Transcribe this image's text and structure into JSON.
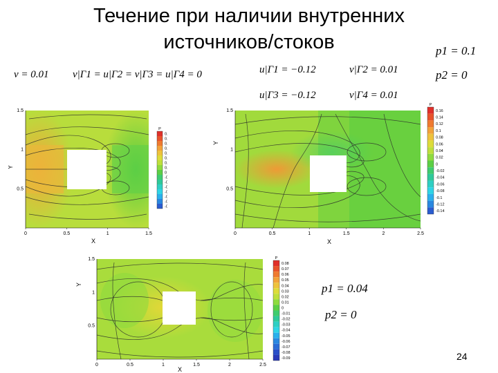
{
  "title_line1": "Течение при наличии внутренних",
  "title_line2": "источников/стоков",
  "page_number": "24",
  "formulas": {
    "nu": "v = 0.01",
    "bc": "v|Γ1 = u|Γ2 = v|Γ3 = u|Γ4 = 0",
    "u_g1": "u|Γ1 = −0.12",
    "v_g2": "v|Γ2 = 0.01",
    "u_g3": "u|Γ3 = −0.12",
    "v_g4": "v|Γ4 = 0.01",
    "p1_top": "p1 = 0.1",
    "p2_top": "p2 = 0",
    "p1_bot": "p1 = 0.04",
    "p2_bot": "p2 = 0"
  },
  "colors": {
    "orange": "#f2a73a",
    "yellow": "#e2d837",
    "lime": "#a9dc3c",
    "green": "#57cc3f",
    "teal": "#2fc99a",
    "cyan": "#2fd4e6",
    "blue": "#2a74d6"
  },
  "chart_data": [
    {
      "type": "heatmap",
      "xlabel": "X",
      "ylabel": "Y",
      "xlim": [
        0,
        1.5
      ],
      "ylim": [
        0,
        1.5
      ],
      "x_ticks": [
        "0",
        "0.5",
        "1",
        "1.5"
      ],
      "y_ticks": [
        "0.5",
        "1",
        "1.5"
      ],
      "legend_title": "P",
      "legend_position": "right",
      "legend_levels": [
        "0.16",
        "0.14",
        "0.12",
        "0.1",
        "0.08",
        "0.06",
        "0.04",
        "0.02",
        "0",
        "-0.02",
        "-0.04",
        "-0.06",
        "-0.08",
        "-0.1",
        "-0.12",
        "-0.14"
      ],
      "legend_colors": [
        "#e0302a",
        "#e8532b",
        "#ef7a30",
        "#f2a23a",
        "#eec23c",
        "#dddc3a",
        "#bedf3c",
        "#8fdb3e",
        "#5ccf45",
        "#3fcc6f",
        "#2fc99a",
        "#2fcfc4",
        "#2fd4e6",
        "#2ab0ec",
        "#2a88e0",
        "#2a5ccf"
      ]
    },
    {
      "type": "heatmap",
      "xlabel": "X",
      "ylabel": "Y",
      "xlim": [
        0,
        2.5
      ],
      "ylim": [
        0,
        1.5
      ],
      "x_ticks": [
        "0",
        "0.5",
        "1",
        "1.5",
        "2",
        "2.5"
      ],
      "y_ticks": [
        "0.5",
        "1",
        "1.5"
      ],
      "legend_title": "P",
      "legend_position": "right",
      "legend_levels": [
        "0.16",
        "0.14",
        "0.12",
        "0.1",
        "0.08",
        "0.06",
        "0.04",
        "0.02",
        "0",
        "-0.02",
        "-0.04",
        "-0.06",
        "-0.08",
        "-0.1",
        "-0.12",
        "-0.14"
      ],
      "legend_colors": [
        "#e0302a",
        "#e8532b",
        "#ef7a30",
        "#f2a23a",
        "#eec23c",
        "#dddc3a",
        "#bedf3c",
        "#8fdb3e",
        "#5ccf45",
        "#3fcc6f",
        "#2fc99a",
        "#2fcfc4",
        "#2fd4e6",
        "#2ab0ec",
        "#2a88e0",
        "#2a5ccf"
      ]
    },
    {
      "type": "heatmap",
      "xlabel": "X",
      "ylabel": "Y",
      "xlim": [
        0,
        2.5
      ],
      "ylim": [
        0,
        1.5
      ],
      "x_ticks": [
        "0",
        "0.5",
        "1",
        "1.5",
        "2",
        "2.5"
      ],
      "y_ticks": [
        "0.5",
        "1",
        "1.5"
      ],
      "legend_title": "P",
      "legend_position": "right",
      "legend_levels": [
        "0.08",
        "0.07",
        "0.06",
        "0.05",
        "0.04",
        "0.03",
        "0.02",
        "0.01",
        "0",
        "-0.01",
        "-0.02",
        "-0.03",
        "-0.04",
        "-0.05",
        "-0.06",
        "-0.07",
        "-0.08",
        "-0.09"
      ],
      "legend_colors": [
        "#e0302a",
        "#e8532b",
        "#ef7a30",
        "#f2a23a",
        "#eec23c",
        "#dddc3a",
        "#bedf3c",
        "#8fdb3e",
        "#5ccf45",
        "#3fcc6f",
        "#2fc99a",
        "#2fcfc4",
        "#2fd4e6",
        "#2ab0ec",
        "#2a88e0",
        "#2a6cd6",
        "#2a4fc8",
        "#2a3ab8"
      ]
    }
  ]
}
